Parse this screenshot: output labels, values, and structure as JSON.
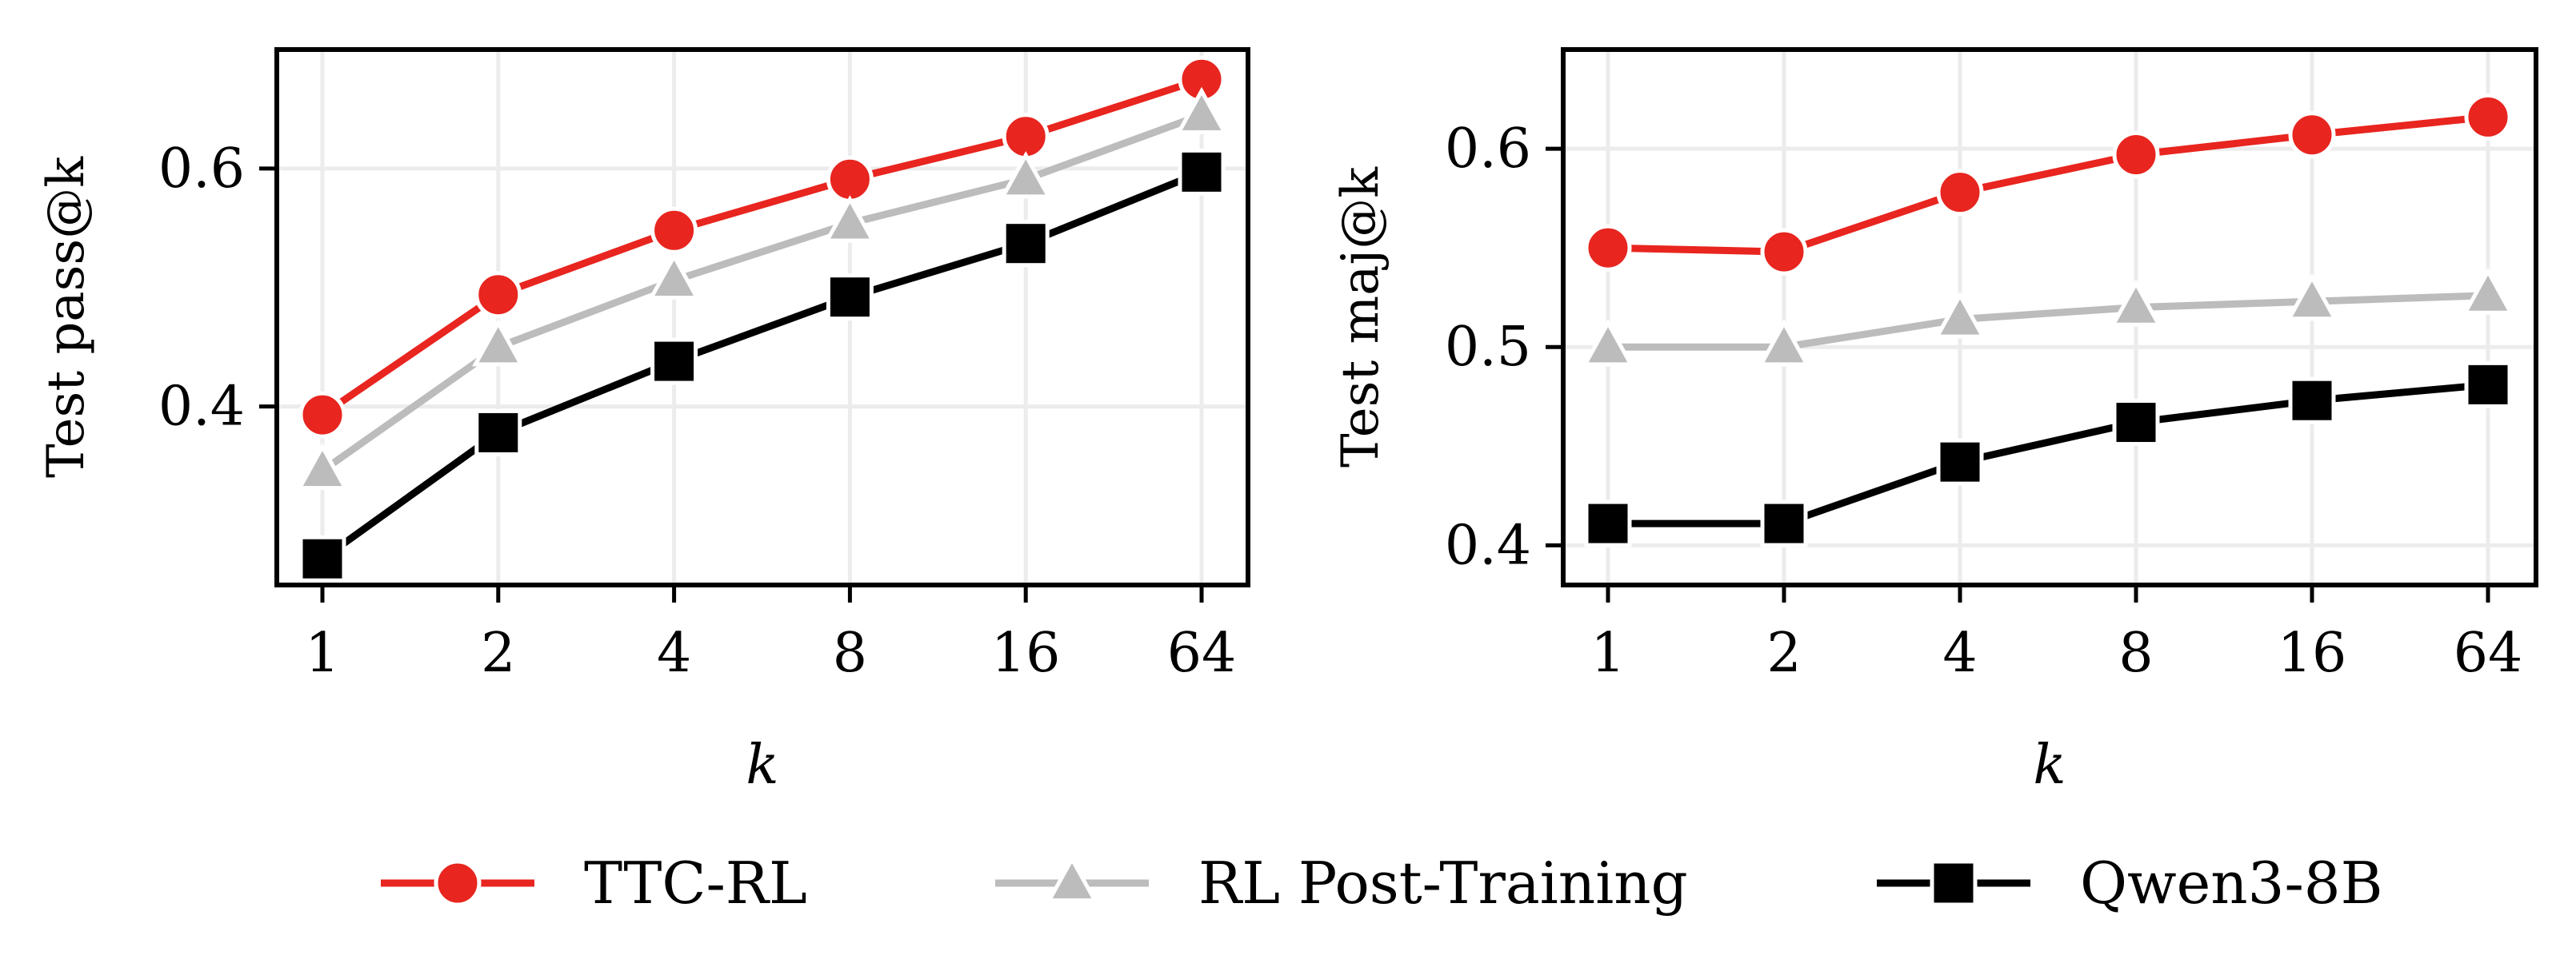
{
  "colors": {
    "ttc_rl": "#e8251f",
    "rl_post_training": "#bcbcbc",
    "qwen": "#000000",
    "grid": "#ececec"
  },
  "legend": [
    {
      "label": "TTC-RL",
      "marker": "circle",
      "color": "#e8251f"
    },
    {
      "label": "RL Post-Training",
      "marker": "triangle",
      "color": "#bcbcbc"
    },
    {
      "label": "Qwen3-8B",
      "marker": "square",
      "color": "#000000"
    }
  ],
  "chart_data": [
    {
      "type": "line",
      "xlabel": "k",
      "ylabel": "Test pass@k",
      "categories": [
        "1",
        "2",
        "4",
        "8",
        "16",
        "64"
      ],
      "ylim": [
        0.25,
        0.7
      ],
      "yticks": [
        0.4,
        0.6
      ],
      "ytick_labels": [
        "0.4",
        "0.6"
      ],
      "grid": true,
      "series": [
        {
          "name": "TTC-RL",
          "values": [
            0.393,
            0.494,
            0.548,
            0.591,
            0.627,
            0.675
          ]
        },
        {
          "name": "RL Post-Training",
          "values": [
            0.346,
            0.45,
            0.506,
            0.554,
            0.591,
            0.645
          ]
        },
        {
          "name": "Qwen3-8B",
          "values": [
            0.272,
            0.378,
            0.438,
            0.492,
            0.537,
            0.597
          ]
        }
      ]
    },
    {
      "type": "line",
      "xlabel": "k",
      "ylabel": "Test maj@k",
      "categories": [
        "1",
        "2",
        "4",
        "8",
        "16",
        "64"
      ],
      "ylim": [
        0.38,
        0.65
      ],
      "yticks": [
        0.4,
        0.5,
        0.6
      ],
      "ytick_labels": [
        "0.4",
        "0.5",
        "0.6"
      ],
      "grid": true,
      "series": [
        {
          "name": "TTC-RL",
          "values": [
            0.55,
            0.548,
            0.578,
            0.597,
            0.607,
            0.616
          ]
        },
        {
          "name": "RL Post-Training",
          "values": [
            0.5,
            0.5,
            0.514,
            0.52,
            0.523,
            0.526
          ]
        },
        {
          "name": "Qwen3-8B",
          "values": [
            0.411,
            0.411,
            0.442,
            0.462,
            0.473,
            0.481
          ]
        }
      ]
    }
  ]
}
